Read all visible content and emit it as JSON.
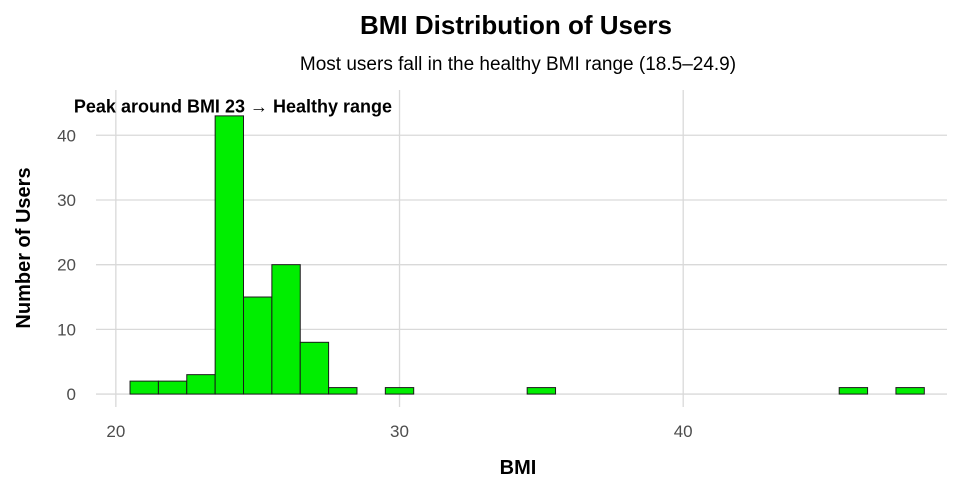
{
  "chart_data": {
    "type": "bar",
    "title": "BMI Distribution of Users",
    "subtitle": "Most users fall in the healthy BMI range (18.5–24.9)",
    "xlabel": "BMI",
    "ylabel": "Number of Users",
    "xlim": [
      19.3,
      49.3
    ],
    "ylim": [
      -2,
      47
    ],
    "x_ticks": [
      20,
      30,
      40
    ],
    "y_ticks": [
      0,
      10,
      20,
      30,
      40
    ],
    "bin_width": 1,
    "bins": [
      {
        "start": 20.5,
        "end": 21.5,
        "count": 2
      },
      {
        "start": 21.5,
        "end": 22.5,
        "count": 2
      },
      {
        "start": 22.5,
        "end": 23.5,
        "count": 3
      },
      {
        "start": 23.5,
        "end": 24.5,
        "count": 43
      },
      {
        "start": 24.5,
        "end": 25.5,
        "count": 15
      },
      {
        "start": 25.5,
        "end": 26.5,
        "count": 20
      },
      {
        "start": 26.5,
        "end": 27.5,
        "count": 8
      },
      {
        "start": 27.5,
        "end": 28.5,
        "count": 1
      },
      {
        "start": 29.5,
        "end": 30.5,
        "count": 1
      },
      {
        "start": 34.5,
        "end": 35.5,
        "count": 1
      },
      {
        "start": 45.5,
        "end": 46.5,
        "count": 1
      },
      {
        "start": 47.5,
        "end": 48.5,
        "count": 1
      }
    ],
    "bar_color": "#00ee00",
    "bar_edge_color": "#1a1a1a",
    "grid": true,
    "legend": "none",
    "annotation": {
      "text": "Peak around BMI 23 → Healthy range",
      "x": 23,
      "y": 44
    }
  }
}
